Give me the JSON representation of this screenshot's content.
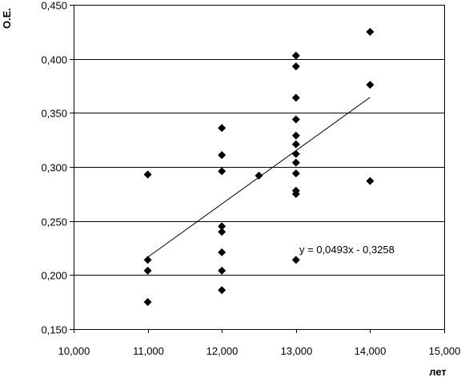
{
  "chart_data": {
    "type": "scatter",
    "xlabel": "лет",
    "ylabel": "О.Е.",
    "xlim": [
      10,
      15
    ],
    "ylim": [
      0.15,
      0.45
    ],
    "x_ticks": [
      "10,000",
      "11,000",
      "12,000",
      "13,000",
      "14,000",
      "15,000"
    ],
    "y_ticks": [
      "0,150",
      "0,200",
      "0,250",
      "0,300",
      "0,350",
      "0,400",
      "0,450"
    ],
    "grid": "horizontal",
    "marker": "diamond",
    "marker_color": "#000000",
    "series": [
      {
        "points": [
          {
            "x": 11,
            "y": 0.293
          },
          {
            "x": 11,
            "y": 0.214
          },
          {
            "x": 11,
            "y": 0.204
          },
          {
            "x": 11,
            "y": 0.175
          },
          {
            "x": 12,
            "y": 0.336
          },
          {
            "x": 12,
            "y": 0.311
          },
          {
            "x": 12,
            "y": 0.296
          },
          {
            "x": 12,
            "y": 0.245
          },
          {
            "x": 12,
            "y": 0.24
          },
          {
            "x": 12,
            "y": 0.221
          },
          {
            "x": 12,
            "y": 0.204
          },
          {
            "x": 12,
            "y": 0.186
          },
          {
            "x": 12.5,
            "y": 0.292
          },
          {
            "x": 13,
            "y": 0.403
          },
          {
            "x": 13,
            "y": 0.393
          },
          {
            "x": 13,
            "y": 0.364
          },
          {
            "x": 13,
            "y": 0.344
          },
          {
            "x": 13,
            "y": 0.329
          },
          {
            "x": 13,
            "y": 0.321
          },
          {
            "x": 13,
            "y": 0.312
          },
          {
            "x": 13,
            "y": 0.304
          },
          {
            "x": 13,
            "y": 0.294
          },
          {
            "x": 13,
            "y": 0.278
          },
          {
            "x": 13,
            "y": 0.275
          },
          {
            "x": 13,
            "y": 0.214
          },
          {
            "x": 14,
            "y": 0.425
          },
          {
            "x": 14,
            "y": 0.376
          },
          {
            "x": 14,
            "y": 0.287
          }
        ]
      }
    ],
    "trendline": {
      "type": "linear",
      "slope": 0.0493,
      "intercept": -0.3258,
      "x_range": [
        11,
        14
      ],
      "equation": "y = 0,0493x  - 0,3258"
    }
  }
}
